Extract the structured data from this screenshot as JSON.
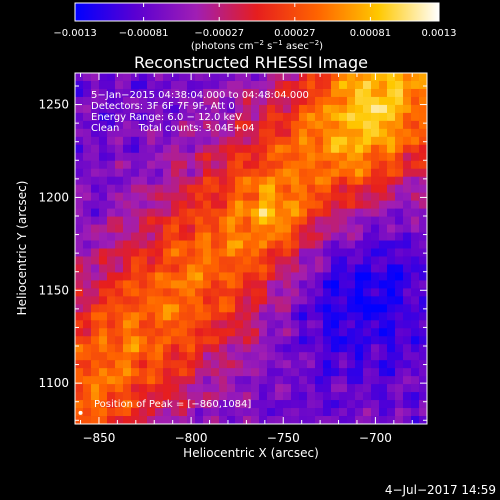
{
  "chart_data": {
    "type": "heatmap",
    "title": "Reconstructed RHESSI Image",
    "xlabel": "Heliocentric X (arcsec)",
    "ylabel": "Heliocentric Y (arcsec)",
    "xlim": [
      -863,
      -672
    ],
    "ylim": [
      1078,
      1267
    ],
    "x_ticks": [
      -850,
      -800,
      -750,
      -700
    ],
    "x_tick_labels": [
      "−850",
      "−800",
      "−750",
      "−700"
    ],
    "y_ticks": [
      1100,
      1150,
      1200,
      1250
    ],
    "y_tick_labels": [
      "1100",
      "1150",
      "1200",
      "1250"
    ],
    "colorbar": {
      "min": -0.0013,
      "max": 0.0013,
      "tick_values": [
        -0.0013,
        -0.00081,
        -0.00027,
        0.00027,
        0.00081,
        0.0013
      ],
      "tick_labels": [
        "−0.0013",
        "−0.00081",
        "−0.00027",
        "0.00027",
        "0.00081",
        "0.0013"
      ],
      "unit_label": {
        "prefix": "(photons cm",
        "sup1": "−2",
        "mid1": " s",
        "sup2": "−1",
        "mid2": " asec",
        "sup3": "−2",
        "suffix": ")"
      },
      "colors": [
        "#0000ff",
        "#5a00d2",
        "#a01eb4",
        "#e61e1e",
        "#ff6400",
        "#ffc800",
        "#ffffff"
      ]
    },
    "annotations": [
      "5−Jan−2015 04:38:04.000 to 04:48:04.000",
      "Detectors: 3F 6F 7F 9F, Att 0",
      "Energy Range: 6.0 − 12.0 keV",
      "Clean      Total counts: 3.04E+04"
    ],
    "peak_label": "Position of Peak = [−860,1084]",
    "peak": {
      "x": -860,
      "y": 1084
    },
    "grid": false
  },
  "footer": {
    "timestamp": "4−Jul−2017 14:59"
  }
}
